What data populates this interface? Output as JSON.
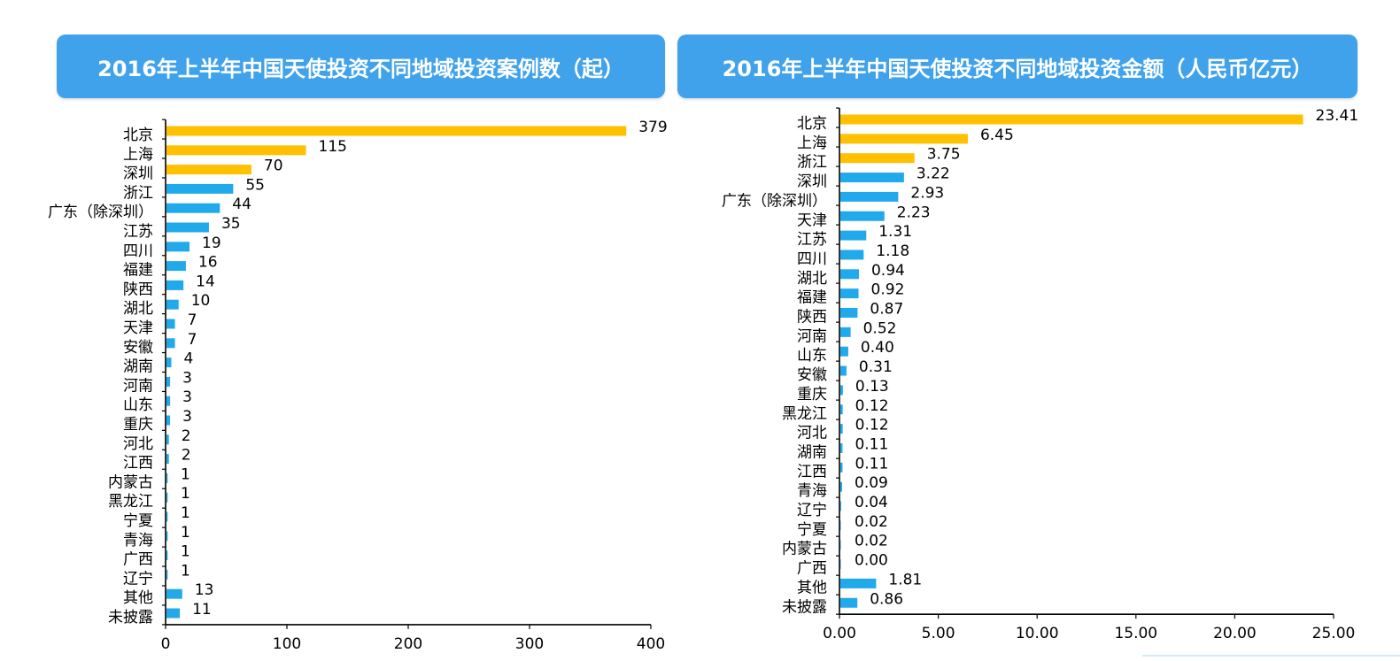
{
  "colors": {
    "highlight": "#ffc000",
    "normal": "#21aaeb",
    "title_bg": "#3fa2ea",
    "title_text": "#ffffff"
  },
  "chart_data": [
    {
      "type": "bar",
      "orientation": "horizontal",
      "title": "2016年上半年中国天使投资不同地域投资案例数（起）",
      "categories": [
        "北京",
        "上海",
        "深圳",
        "浙江",
        "广东（除深圳）",
        "江苏",
        "四川",
        "福建",
        "陕西",
        "湖北",
        "天津",
        "安徽",
        "湖南",
        "河南",
        "山东",
        "重庆",
        "河北",
        "江西",
        "内蒙古",
        "黑龙江",
        "宁夏",
        "青海",
        "广西",
        "辽宁",
        "其他",
        "未披露"
      ],
      "values": [
        379,
        115,
        70,
        55,
        44,
        35,
        19,
        16,
        14,
        10,
        7,
        7,
        4,
        3,
        3,
        3,
        2,
        2,
        1,
        1,
        1,
        1,
        1,
        1,
        13,
        11
      ],
      "value_labels": [
        "379",
        "115",
        "70",
        "55",
        "44",
        "35",
        "19",
        "16",
        "14",
        "10",
        "7",
        "7",
        "4",
        "3",
        "3",
        "3",
        "2",
        "2",
        "1",
        "1",
        "1",
        "1",
        "1",
        "1",
        "13",
        "11"
      ],
      "highlighted_count": 3,
      "xlim": [
        0,
        400
      ],
      "xticks": [
        0,
        100,
        200,
        300,
        400
      ],
      "xtick_labels": [
        "0",
        "100",
        "200",
        "300",
        "400"
      ]
    },
    {
      "type": "bar",
      "orientation": "horizontal",
      "title": "2016年上半年中国天使投资不同地域投资金额（人民币亿元）",
      "categories": [
        "北京",
        "上海",
        "浙江",
        "深圳",
        "广东（除深圳）",
        "天津",
        "江苏",
        "四川",
        "湖北",
        "福建",
        "陕西",
        "河南",
        "山东",
        "安徽",
        "重庆",
        "黑龙江",
        "河北",
        "湖南",
        "江西",
        "青海",
        "辽宁",
        "宁夏",
        "内蒙古",
        "广西",
        "其他",
        "未披露"
      ],
      "values": [
        23.41,
        6.45,
        3.75,
        3.22,
        2.93,
        2.23,
        1.31,
        1.18,
        0.94,
        0.92,
        0.87,
        0.52,
        0.4,
        0.31,
        0.13,
        0.12,
        0.12,
        0.11,
        0.11,
        0.09,
        0.04,
        0.02,
        0.02,
        0.0,
        1.81,
        0.86
      ],
      "value_labels": [
        "23.41",
        "6.45",
        "3.75",
        "3.22",
        "2.93",
        "2.23",
        "1.31",
        "1.18",
        "0.94",
        "0.92",
        "0.87",
        "0.52",
        "0.40",
        "0.31",
        "0.13",
        "0.12",
        "0.12",
        "0.11",
        "0.11",
        "0.09",
        "0.04",
        "0.02",
        "0.02",
        "0.00",
        "1.81",
        "0.86"
      ],
      "highlighted_count": 3,
      "xlim": [
        0,
        25
      ],
      "xticks": [
        0,
        5,
        10,
        15,
        20,
        25
      ],
      "xtick_labels": [
        "0.00",
        "5.00",
        "10.00",
        "15.00",
        "20.00",
        "25.00"
      ]
    }
  ]
}
